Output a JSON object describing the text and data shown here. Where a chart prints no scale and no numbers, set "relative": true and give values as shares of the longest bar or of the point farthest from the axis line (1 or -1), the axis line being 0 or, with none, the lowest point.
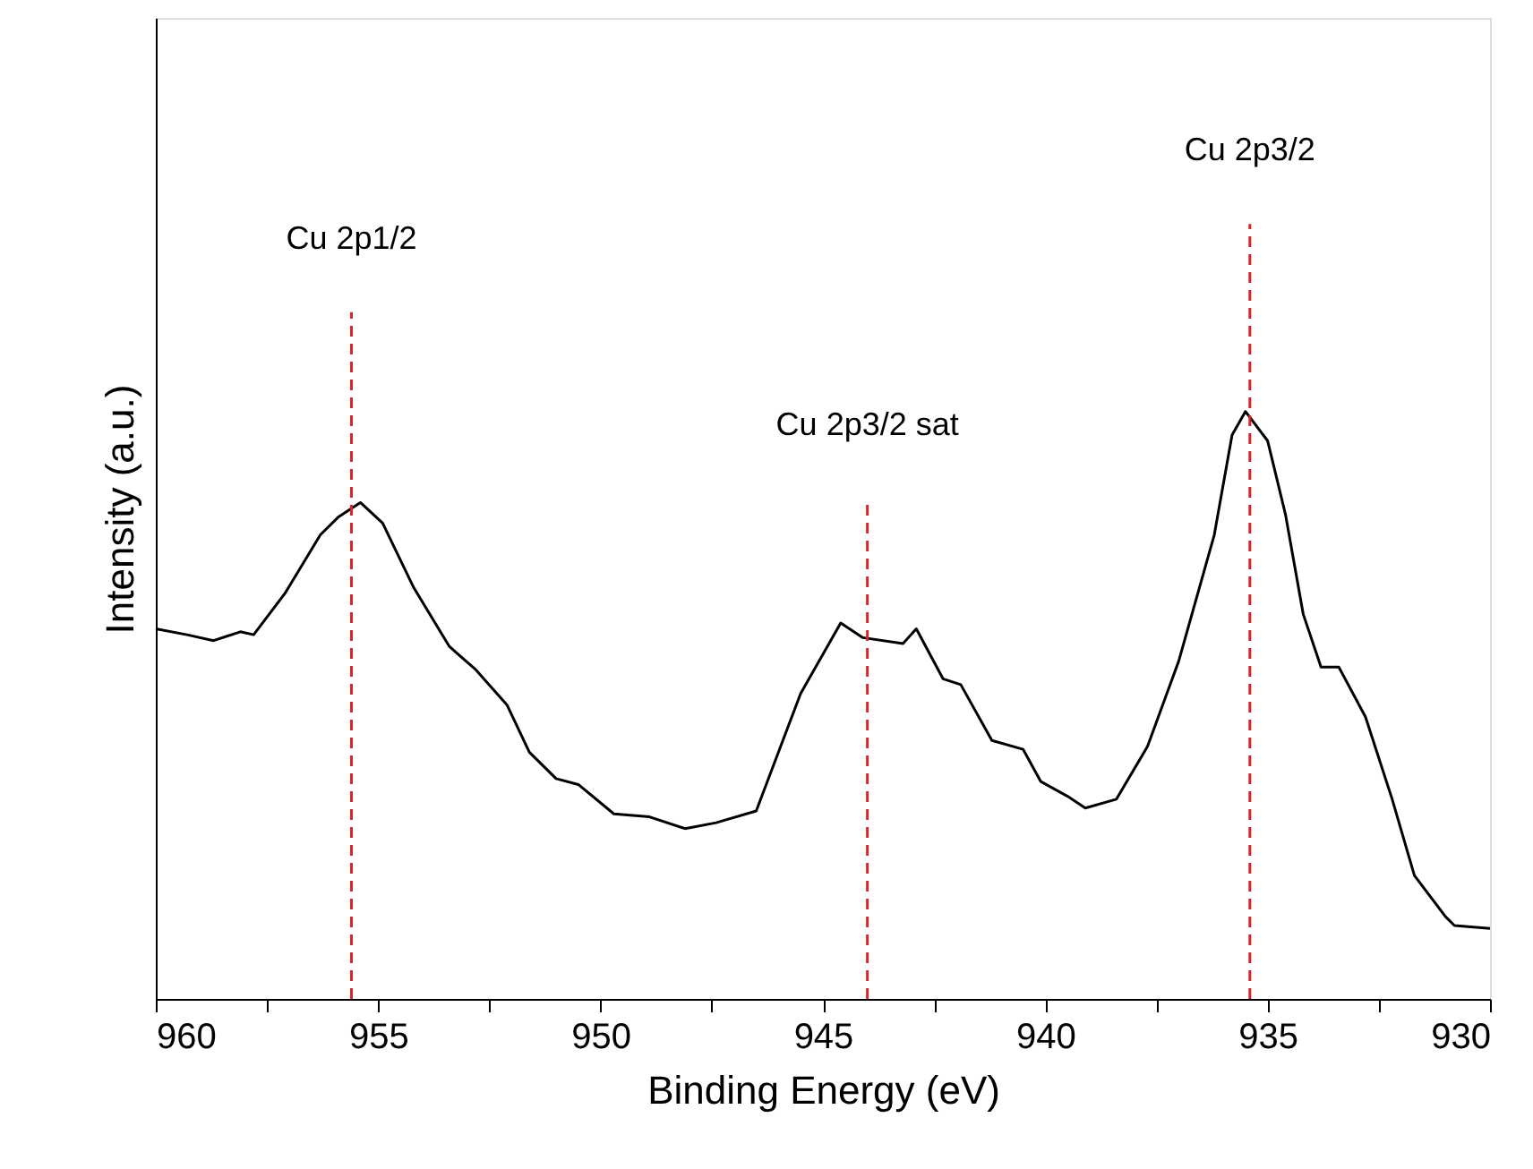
{
  "chart_data": {
    "type": "line",
    "relative": true,
    "xlabel": "Binding Energy (eV)",
    "ylabel": "Intensity (a.u.)",
    "xlim": [
      960,
      930
    ],
    "xticks": [
      960,
      {
        "value": 957.5,
        "label": null
      },
      955,
      {
        "value": 952.5,
        "label": null
      },
      950,
      {
        "value": 947.5,
        "label": null
      },
      945,
      {
        "value": 942.5,
        "label": null
      },
      940,
      {
        "value": 937.5,
        "label": null
      },
      935,
      {
        "value": 932.5,
        "label": null
      },
      930
    ],
    "tick_labels": "x",
    "grid": false,
    "marker": "none",
    "line_style": "solid",
    "series": [
      {
        "color": "#000000",
        "x": [
          960,
          959.3,
          958.7,
          958.1,
          957.8,
          957.1,
          956.3,
          955.9,
          955.4,
          954.9,
          954.2,
          953.4,
          952.8,
          952.1,
          951.6,
          951.0,
          950.5,
          949.7,
          948.9,
          948.1,
          947.4,
          946.5,
          946.1,
          945.5,
          944.6,
          944.1,
          943.2,
          942.9,
          942.3,
          941.9,
          941.2,
          940.5,
          940.1,
          939.5,
          939.1,
          938.4,
          937.7,
          937.0,
          936.2,
          935.8,
          935.5,
          935.0,
          934.6,
          934.2,
          933.8,
          933.4,
          932.8,
          932.2,
          931.7,
          931.0,
          930.8,
          930.0
        ],
        "values": [
          0.63,
          0.62,
          0.61,
          0.625,
          0.62,
          0.69,
          0.79,
          0.82,
          0.845,
          0.81,
          0.7,
          0.6,
          0.56,
          0.5,
          0.42,
          0.375,
          0.365,
          0.315,
          0.31,
          0.29,
          0.3,
          0.32,
          0.4,
          0.52,
          0.64,
          0.615,
          0.605,
          0.63,
          0.545,
          0.535,
          0.44,
          0.425,
          0.37,
          0.345,
          0.325,
          0.34,
          0.43,
          0.575,
          0.79,
          0.96,
          1.0,
          0.95,
          0.825,
          0.655,
          0.565,
          0.565,
          0.48,
          0.34,
          0.21,
          0.14,
          0.125,
          0.12
        ]
      }
    ],
    "ref_lines": [
      {
        "axis": "x",
        "value": 955.6,
        "label": "Cu 2p1/2",
        "color": "#d62728",
        "line_style": "dashed"
      },
      {
        "axis": "x",
        "value": 944.0,
        "label": "Cu 2p3/2 sat",
        "color": "#d62728",
        "line_style": "dashed"
      },
      {
        "axis": "x",
        "value": 935.4,
        "label": "Cu 2p3/2",
        "color": "#d62728",
        "line_style": "dashed"
      }
    ]
  }
}
